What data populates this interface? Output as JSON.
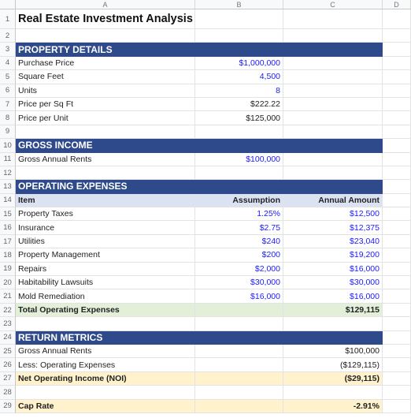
{
  "columns": [
    "A",
    "B",
    "C",
    "D"
  ],
  "rows": [
    {
      "n": "1",
      "a": "Real Estate Investment Analysis",
      "b": "",
      "c": "",
      "style": "title"
    },
    {
      "n": "2",
      "a": "",
      "b": "",
      "c": "",
      "style": ""
    },
    {
      "n": "3",
      "a": "PROPERTY DETAILS",
      "b": "",
      "c": "",
      "style": "band"
    },
    {
      "n": "4",
      "a": "Purchase Price",
      "b": "$1,000,000",
      "c": "",
      "style": "input"
    },
    {
      "n": "5",
      "a": "Square Feet",
      "b": "4,500",
      "c": "",
      "style": "input"
    },
    {
      "n": "6",
      "a": "Units",
      "b": "8",
      "c": "",
      "style": "input"
    },
    {
      "n": "7",
      "a": "Price per Sq Ft",
      "b": "$222.22",
      "c": "",
      "style": ""
    },
    {
      "n": "8",
      "a": "Price per Unit",
      "b": "$125,000",
      "c": "",
      "style": ""
    },
    {
      "n": "9",
      "a": "",
      "b": "",
      "c": "",
      "style": ""
    },
    {
      "n": "10",
      "a": "GROSS INCOME",
      "b": "",
      "c": "",
      "style": "band"
    },
    {
      "n": "11",
      "a": "Gross Annual Rents",
      "b": "$100,000",
      "c": "",
      "style": "input"
    },
    {
      "n": "12",
      "a": "",
      "b": "",
      "c": "",
      "style": ""
    },
    {
      "n": "13",
      "a": "OPERATING EXPENSES",
      "b": "",
      "c": "",
      "style": "band"
    },
    {
      "n": "14",
      "a": "Item",
      "b": "Assumption",
      "c": "Annual Amount",
      "style": "hdr"
    },
    {
      "n": "15",
      "a": "Property Taxes",
      "b": "1.25%",
      "c": "$12,500",
      "style": "input"
    },
    {
      "n": "16",
      "a": "Insurance",
      "b": "$2.75",
      "c": "$12,375",
      "style": "input"
    },
    {
      "n": "17",
      "a": "Utilities",
      "b": "$240",
      "c": "$23,040",
      "style": "input"
    },
    {
      "n": "18",
      "a": "Property Management",
      "b": "$200",
      "c": "$19,200",
      "style": "input"
    },
    {
      "n": "19",
      "a": "Repairs",
      "b": "$2,000",
      "c": "$16,000",
      "style": "input"
    },
    {
      "n": "20",
      "a": "Habitability Lawsuits",
      "b": "$30,000",
      "c": "$30,000",
      "style": "input"
    },
    {
      "n": "21",
      "a": "Mold Remediation",
      "b": "$16,000",
      "c": "$16,000",
      "style": "input"
    },
    {
      "n": "22",
      "a": "Total Operating Expenses",
      "b": "",
      "c": "$129,115",
      "style": "green"
    },
    {
      "n": "23",
      "a": "",
      "b": "",
      "c": "",
      "style": ""
    },
    {
      "n": "24",
      "a": "RETURN METRICS",
      "b": "",
      "c": "",
      "style": "band"
    },
    {
      "n": "25",
      "a": "Gross Annual Rents",
      "b": "",
      "c": "$100,000",
      "style": ""
    },
    {
      "n": "26",
      "a": "Less: Operating Expenses",
      "b": "",
      "c": "($129,115)",
      "style": ""
    },
    {
      "n": "27",
      "a": "Net Operating Income (NOI)",
      "b": "",
      "c": "($29,115)",
      "style": "yellow"
    },
    {
      "n": "28",
      "a": "",
      "b": "",
      "c": "",
      "style": ""
    },
    {
      "n": "29",
      "a": "Cap Rate",
      "b": "",
      "c": "-2.91%",
      "style": "yellow"
    }
  ]
}
